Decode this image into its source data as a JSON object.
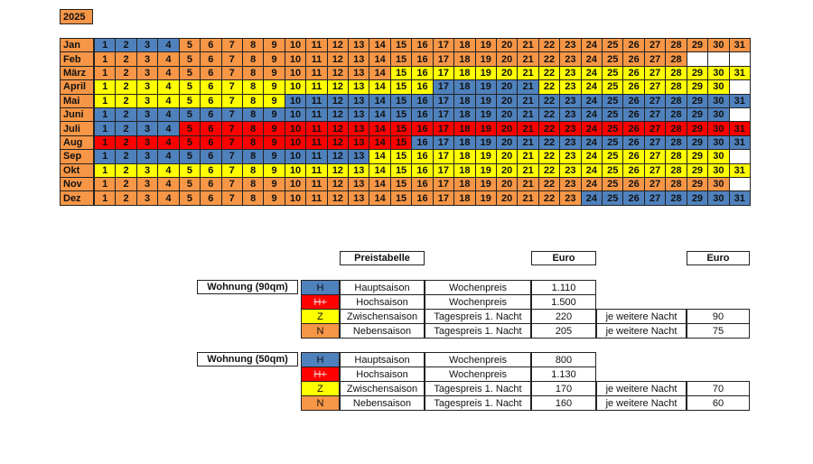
{
  "year": "2025",
  "days": [
    "1",
    "2",
    "3",
    "4",
    "5",
    "6",
    "7",
    "8",
    "9",
    "10",
    "11",
    "12",
    "13",
    "14",
    "15",
    "16",
    "17",
    "18",
    "19",
    "20",
    "21",
    "22",
    "23",
    "24",
    "25",
    "26",
    "27",
    "28",
    "29",
    "30",
    "31"
  ],
  "season_colors": {
    "H": "#4f81bd",
    "H+": "#ff0000",
    "Z": "#ffff00",
    "N": "#f79646"
  },
  "months": [
    {
      "name": "Jan",
      "segments": [
        {
          "season": "H",
          "count": 4
        },
        {
          "season": "N",
          "count": 27
        }
      ]
    },
    {
      "name": "Feb",
      "segments": [
        {
          "season": "N",
          "count": 28
        }
      ]
    },
    {
      "name": "März",
      "segments": [
        {
          "season": "N",
          "count": 14
        },
        {
          "season": "Z",
          "count": 17
        }
      ]
    },
    {
      "name": "April",
      "segments": [
        {
          "season": "Z",
          "count": 16
        },
        {
          "season": "H",
          "count": 5
        },
        {
          "season": "Z",
          "count": 9
        }
      ]
    },
    {
      "name": "Mai",
      "segments": [
        {
          "season": "Z",
          "count": 9
        },
        {
          "season": "H",
          "count": 22
        }
      ]
    },
    {
      "name": "Juni",
      "segments": [
        {
          "season": "H",
          "count": 30
        }
      ]
    },
    {
      "name": "Juli",
      "segments": [
        {
          "season": "H",
          "count": 4
        },
        {
          "season": "H+",
          "count": 27
        }
      ]
    },
    {
      "name": "Aug",
      "segments": [
        {
          "season": "H+",
          "count": 15
        },
        {
          "season": "H",
          "count": 16
        }
      ]
    },
    {
      "name": "Sep",
      "segments": [
        {
          "season": "H",
          "count": 13
        },
        {
          "season": "Z",
          "count": 17
        }
      ]
    },
    {
      "name": "Okt",
      "segments": [
        {
          "season": "Z",
          "count": 31
        }
      ]
    },
    {
      "name": "Nov",
      "segments": [
        {
          "season": "N",
          "count": 30
        }
      ]
    },
    {
      "name": "Dez",
      "segments": [
        {
          "season": "N",
          "count": 23
        },
        {
          "season": "H",
          "count": 8
        }
      ]
    }
  ],
  "price_header": {
    "title": "Preistabelle",
    "euro1": "Euro",
    "euro2": "Euro"
  },
  "apartments": [
    {
      "name": "Wohnung (90qm)",
      "rows": [
        {
          "code": "H",
          "season": "Hauptsaison",
          "type": "Wochenpreis",
          "price": "1.110"
        },
        {
          "code": "H+",
          "season": "Hochsaison",
          "type": "Wochenpreis",
          "price": "1.500"
        },
        {
          "code": "Z",
          "season": "Zwischensaison",
          "type": "Tagespreis 1. Nacht",
          "price": "220",
          "extra": "je weitere Nacht",
          "extra_price": "90"
        },
        {
          "code": "N",
          "season": "Nebensaison",
          "type": "Tagespreis 1. Nacht",
          "price": "205",
          "extra": "je weitere Nacht",
          "extra_price": "75"
        }
      ]
    },
    {
      "name": "Wohnung (50qm)",
      "rows": [
        {
          "code": "H",
          "season": "Hauptsaison",
          "type": "Wochenpreis",
          "price": "800"
        },
        {
          "code": "H+",
          "season": "Hochsaison",
          "type": "Wochenpreis",
          "price": "1.130"
        },
        {
          "code": "Z",
          "season": "Zwischensaison",
          "type": "Tagespreis 1. Nacht",
          "price": "170",
          "extra": "je weitere Nacht",
          "extra_price": "70"
        },
        {
          "code": "N",
          "season": "Nebensaison",
          "type": "Tagespreis 1. Nacht",
          "price": "160",
          "extra": "je weitere Nacht",
          "extra_price": "60"
        }
      ]
    }
  ]
}
